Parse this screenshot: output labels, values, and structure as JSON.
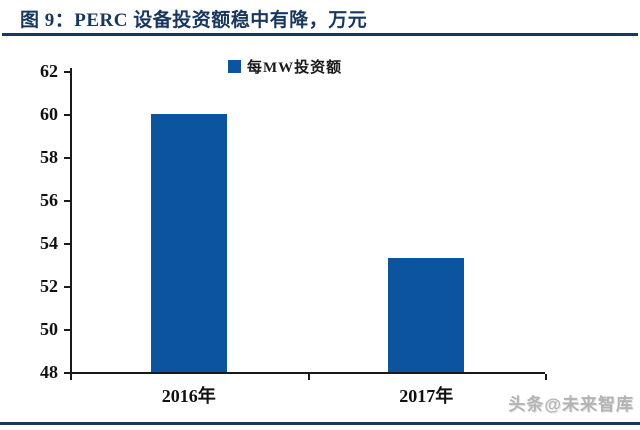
{
  "header": {
    "title": "图 9：PERC 设备投资额稳中有降，万元"
  },
  "chart_data": {
    "type": "bar",
    "title": "图 9：PERC 设备投资额稳中有降，万元",
    "legend": [
      "每MW投资额"
    ],
    "legend_position": "top-center",
    "categories": [
      "2016年",
      "2017年"
    ],
    "values": [
      60,
      53.3
    ],
    "xlabel": "",
    "ylabel": "",
    "ylim": [
      48,
      62
    ],
    "yticks": [
      48,
      50,
      52,
      54,
      56,
      58,
      60,
      62
    ],
    "grid": "off",
    "bar_color": "#0D549E"
  },
  "watermark": {
    "text": "头条@未来智库"
  },
  "colors": {
    "title_navy": "#17375D",
    "bar_blue": "#0D549E",
    "axis_black": "#1a1a1a",
    "watermark_gray": "#b3b3b3"
  }
}
